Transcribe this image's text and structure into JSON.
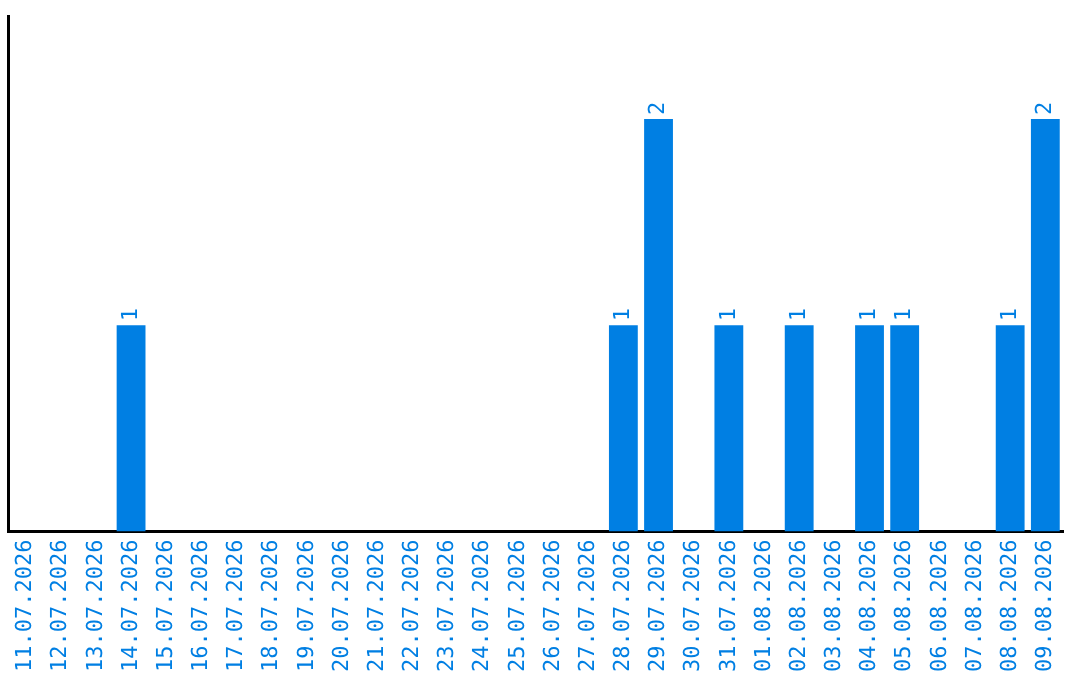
{
  "chart_data": {
    "type": "bar",
    "categories": [
      "11.07.2026",
      "12.07.2026",
      "13.07.2026",
      "14.07.2026",
      "15.07.2026",
      "16.07.2026",
      "17.07.2026",
      "18.07.2026",
      "19.07.2026",
      "20.07.2026",
      "21.07.2026",
      "22.07.2026",
      "23.07.2026",
      "24.07.2026",
      "25.07.2026",
      "26.07.2026",
      "27.07.2026",
      "28.07.2026",
      "29.07.2026",
      "30.07.2026",
      "31.07.2026",
      "01.08.2026",
      "02.08.2026",
      "03.08.2026",
      "04.08.2026",
      "05.08.2026",
      "06.08.2026",
      "07.08.2026",
      "08.08.2026",
      "09.08.2026"
    ],
    "values": [
      0,
      0,
      0,
      1,
      0,
      0,
      0,
      0,
      0,
      0,
      0,
      0,
      0,
      0,
      0,
      0,
      0,
      1,
      2,
      0,
      1,
      0,
      1,
      0,
      1,
      1,
      0,
      0,
      1,
      2
    ],
    "value_labels": [
      null,
      null,
      null,
      "1",
      null,
      null,
      null,
      null,
      null,
      null,
      null,
      null,
      null,
      null,
      null,
      null,
      null,
      "1",
      "2",
      null,
      "1",
      null,
      "1",
      null,
      "1",
      "1",
      null,
      null,
      "1",
      "2"
    ],
    "color": "#007fe3",
    "tick_labels": "x",
    "grid": false,
    "legend": false
  }
}
